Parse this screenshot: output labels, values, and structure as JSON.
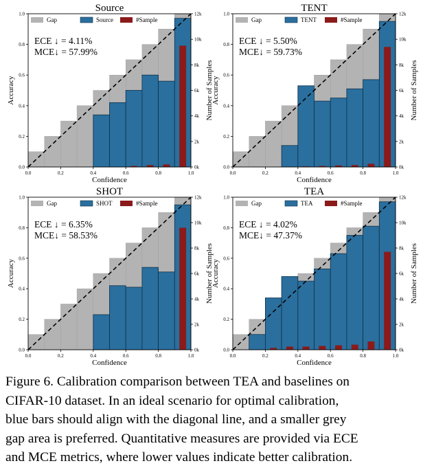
{
  "figure": {
    "caption_lines": [
      "Figure 6. Calibration comparison between TEA and baselines on",
      "CIFAR-10 dataset.  In an ideal scenario for optimal calibration,",
      "blue bars should align with the diagonal line, and a smaller grey",
      "gap area is preferred. Quantitative measures are provided via ECE",
      "and MCE metrics, where lower values indicate better calibration."
    ]
  },
  "chart_data": [
    {
      "type": "bar",
      "title": "Source",
      "xlabel": "Confidence",
      "ylabel": "Accuracy",
      "y2label": "Number of Samples",
      "xlim": [
        0,
        1
      ],
      "ylim": [
        0,
        1
      ],
      "y2lim": [
        0,
        12000
      ],
      "x_ticks": [
        "0.0",
        "0.2",
        "0.4",
        "0.6",
        "0.8",
        "1.0"
      ],
      "y_ticks": [
        "0.0",
        "0.2",
        "0.4",
        "0.6",
        "0.8",
        "1.0"
      ],
      "y2_ticks": [
        "0k",
        "2k",
        "4k",
        "6k",
        "8k",
        "10k",
        "12k"
      ],
      "legend": [
        "Gap",
        "Source",
        "#Sample"
      ],
      "ece": "ECE ↓ = 4.11%",
      "mce": "MCE↓ = 57.99%",
      "bins": [
        0.05,
        0.15,
        0.25,
        0.35,
        0.45,
        0.55,
        0.65,
        0.75,
        0.85,
        0.95
      ],
      "accuracy": [
        0,
        0,
        0,
        0,
        0.34,
        0.42,
        0.5,
        0.6,
        0.56,
        0.97
      ],
      "samples": [
        0,
        0,
        0,
        0,
        0,
        0,
        80,
        150,
        200,
        9500
      ]
    },
    {
      "type": "bar",
      "title": "TENT",
      "xlabel": "Confidence",
      "ylabel": "Accuracy",
      "y2label": "Number of Samples",
      "xlim": [
        0,
        1
      ],
      "ylim": [
        0,
        1
      ],
      "y2lim": [
        0,
        12000
      ],
      "x_ticks": [
        "0.0",
        "0.2",
        "0.4",
        "0.6",
        "0.8",
        "1.0"
      ],
      "y_ticks": [
        "0.0",
        "0.2",
        "0.4",
        "0.6",
        "0.8",
        "1.0"
      ],
      "y2_ticks": [
        "0k",
        "2k",
        "4k",
        "6k",
        "8k",
        "10k",
        "12k"
      ],
      "legend": [
        "Gap",
        "TENT",
        "#Sample"
      ],
      "ece": "ECE ↓ = 5.50%",
      "mce": "MCE↓ = 59.73%",
      "bins": [
        0.05,
        0.15,
        0.25,
        0.35,
        0.45,
        0.55,
        0.65,
        0.75,
        0.85,
        0.95
      ],
      "accuracy": [
        0,
        0,
        0,
        0.14,
        0.53,
        0.43,
        0.45,
        0.51,
        0.57,
        0.95
      ],
      "samples": [
        0,
        0,
        0,
        0,
        50,
        80,
        120,
        150,
        250,
        9400
      ]
    },
    {
      "type": "bar",
      "title": "SHOT",
      "xlabel": "Confidence",
      "ylabel": "Accuracy",
      "y2label": "Number of Samples",
      "xlim": [
        0,
        1
      ],
      "ylim": [
        0,
        1
      ],
      "y2lim": [
        0,
        12000
      ],
      "x_ticks": [
        "0.0",
        "0.2",
        "0.4",
        "0.6",
        "0.8",
        "1.0"
      ],
      "y_ticks": [
        "0.0",
        "0.2",
        "0.4",
        "0.6",
        "0.8",
        "1.0"
      ],
      "y2_ticks": [
        "0k",
        "2k",
        "4k",
        "6k",
        "8k",
        "10k",
        "12k"
      ],
      "legend": [
        "Gap",
        "SHOT",
        "#Sample"
      ],
      "ece": "ECE ↓ = 6.35%",
      "mce": "MCE↓ = 58.53%",
      "bins": [
        0.05,
        0.15,
        0.25,
        0.35,
        0.45,
        0.55,
        0.65,
        0.75,
        0.85,
        0.95
      ],
      "accuracy": [
        0,
        0,
        0,
        0,
        0.23,
        0.42,
        0.41,
        0.54,
        0.51,
        0.95
      ],
      "samples": [
        0,
        0,
        0,
        0,
        0,
        0,
        0,
        0,
        0,
        9600
      ]
    },
    {
      "type": "bar",
      "title": "TEA",
      "xlabel": "Confidence",
      "ylabel": "Accuracy",
      "y2label": "Number of Samples",
      "xlim": [
        0,
        1
      ],
      "ylim": [
        0,
        1
      ],
      "y2lim": [
        0,
        12000
      ],
      "x_ticks": [
        "0.0",
        "0.2",
        "0.4",
        "0.6",
        "0.8",
        "1.0"
      ],
      "y_ticks": [
        "0.0",
        "0.2",
        "0.4",
        "0.6",
        "0.8",
        "1.0"
      ],
      "y2_ticks": [
        "0k",
        "2k",
        "4k",
        "6k",
        "8k",
        "10k",
        "12k"
      ],
      "legend": [
        "Gap",
        "TEA",
        "#Sample"
      ],
      "ece": "ECE ↓ = 4.02%",
      "mce": "MCE↓ = 47.37%",
      "bins": [
        0.05,
        0.15,
        0.25,
        0.35,
        0.45,
        0.55,
        0.65,
        0.75,
        0.85,
        0.95
      ],
      "accuracy": [
        0,
        0.1,
        0.34,
        0.48,
        0.45,
        0.53,
        0.63,
        0.75,
        0.81,
        0.97
      ],
      "samples": [
        0,
        0,
        150,
        250,
        250,
        300,
        350,
        400,
        650,
        7700
      ]
    }
  ]
}
